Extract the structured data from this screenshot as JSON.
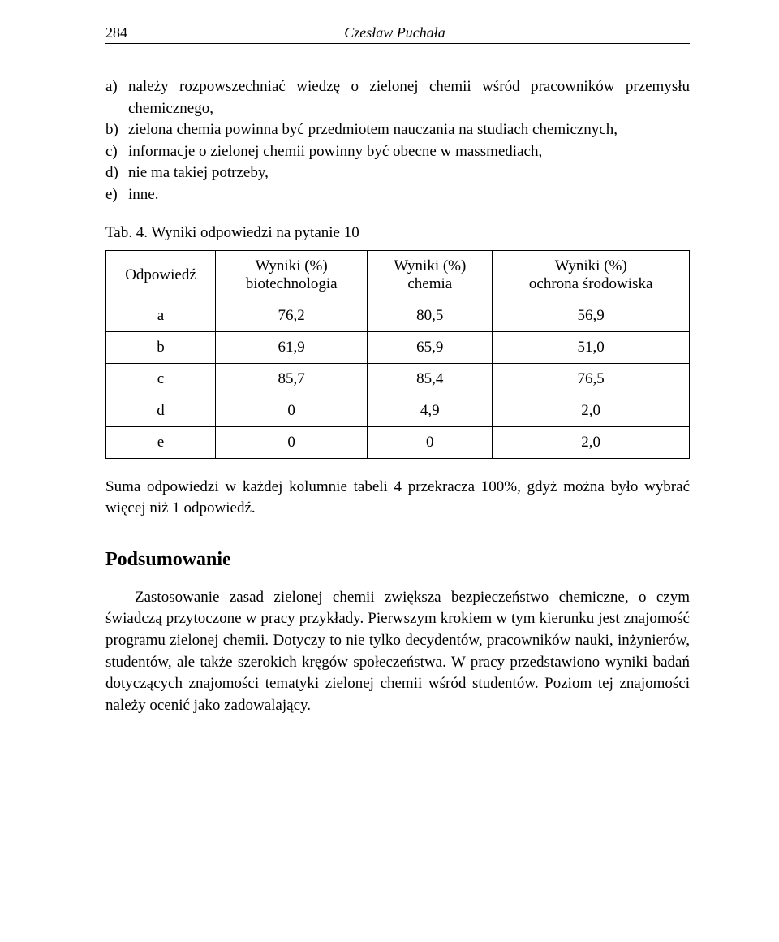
{
  "header": {
    "page_number": "284",
    "author": "Czesław Puchała"
  },
  "options": {
    "items": [
      {
        "letter": "a)",
        "text": "należy rozpowszechniać wiedzę o zielonej chemii wśród pracowników przemysłu chemicznego,"
      },
      {
        "letter": "b)",
        "text": "zielona chemia powinna być przedmiotem nauczania na studiach chemicznych,"
      },
      {
        "letter": "c)",
        "text": "informacje o zielonej chemii powinny być obecne w massmediach,"
      },
      {
        "letter": "d)",
        "text": "nie ma takiej potrzeby,"
      },
      {
        "letter": "e)",
        "text": "inne."
      }
    ]
  },
  "table": {
    "caption": "Tab. 4. Wyniki odpowiedzi na pytanie 10",
    "columns": [
      "Odpowiedź",
      "Wyniki (%)\nbiotechnologia",
      "Wyniki (%)\nchemia",
      "Wyniki (%)\nochrona środowiska"
    ],
    "rows": [
      [
        "a",
        "76,2",
        "80,5",
        "56,9"
      ],
      [
        "b",
        "61,9",
        "65,9",
        "51,0"
      ],
      [
        "c",
        "85,7",
        "85,4",
        "76,5"
      ],
      [
        "d",
        "0",
        "4,9",
        "2,0"
      ],
      [
        "e",
        "0",
        "0",
        "2,0"
      ]
    ],
    "note": "Suma odpowiedzi w każdej kolumnie tabeli 4 przekracza 100%, gdyż można było wybrać więcej niż 1 odpowiedź."
  },
  "summary": {
    "heading": "Podsumowanie",
    "paragraph": "Zastosowanie zasad zielonej chemii zwiększa bezpieczeństwo chemiczne, o czym świadczą przytoczone w pracy przykłady. Pierwszym krokiem w tym kierunku jest znajomość programu zielonej chemii. Dotyczy to nie tylko decydentów, pracowników nauki, inżynierów, studentów, ale także szerokich kręgów społeczeństwa. W pracy przedstawiono wyniki badań dotyczących znajomości tematyki zielonej chemii wśród studentów. Poziom tej znajomości należy ocenić jako zadowalający."
  }
}
